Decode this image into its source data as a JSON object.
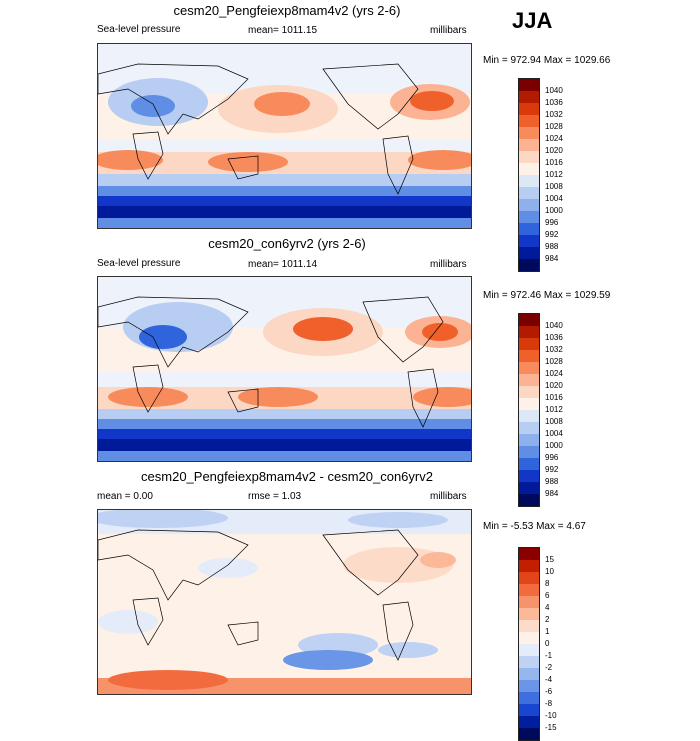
{
  "season": "JJA",
  "panels": [
    {
      "title": "cesm20_Pengfeiexp8mam4v2 (yrs 2-6)",
      "left": "Sea-level pressure",
      "center": "mean= 1011.15",
      "right": "millibars",
      "minmax": "Min = 972.94 Max = 1029.66"
    },
    {
      "title": "cesm20_con6yrv2 (yrs 2-6)",
      "left": "Sea-level pressure",
      "center": "mean= 1011.14",
      "right": "millibars",
      "minmax": "Min = 972.46 Max = 1029.59"
    },
    {
      "title": "cesm20_Pengfeiexp8mam4v2 - cesm20_con6yrv2",
      "left": "mean =   0.00",
      "center": "rmse =   1.03",
      "right": "millibars",
      "minmax": "Min =  -5.53 Max =   4.67"
    }
  ],
  "legend_abs": {
    "labels": [
      "1040",
      "1036",
      "1032",
      "1028",
      "1024",
      "1020",
      "1016",
      "1012",
      "1008",
      "1004",
      "1000",
      "996",
      "992",
      "988",
      "984"
    ],
    "colors": [
      "#7a0000",
      "#b31b00",
      "#d93a0c",
      "#f0602a",
      "#f78b5c",
      "#fbb393",
      "#fcd7c3",
      "#fdf1e8",
      "#dde8f7",
      "#b7cdf2",
      "#8eb0ec",
      "#5f8ee4",
      "#3064dd",
      "#1237c8",
      "#001a9a",
      "#000a5c"
    ]
  },
  "legend_diff": {
    "labels": [
      "15",
      "10",
      "8",
      "6",
      "4",
      "2",
      "1",
      "0",
      "-1",
      "-2",
      "-4",
      "-6",
      "-8",
      "-10",
      "-15"
    ],
    "colors": [
      "#8a0000",
      "#c21f00",
      "#e0461a",
      "#f26b3e",
      "#f7936b",
      "#fbb99a",
      "#fddbc9",
      "#fdf1e8",
      "#e4ecf9",
      "#bfd2f3",
      "#96b6ee",
      "#6b95e6",
      "#3f6fdf",
      "#1a45cf",
      "#001f9f",
      "#000a5c"
    ]
  }
}
